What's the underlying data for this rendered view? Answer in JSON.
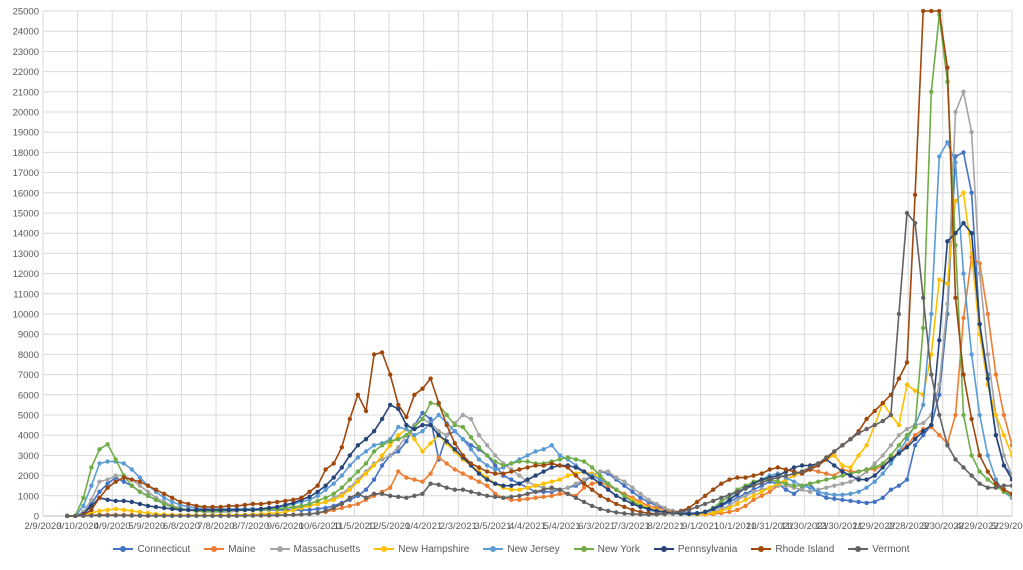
{
  "chart_data": {
    "type": "line",
    "title": "",
    "xlabel": "",
    "ylabel": "",
    "x_ticks": [
      "2/9/2020",
      "3/10/2020",
      "4/9/2020",
      "5/9/2020",
      "6/8/2020",
      "7/8/2020",
      "8/7/2020",
      "9/6/2020",
      "10/6/2020",
      "11/5/2020",
      "12/5/2020",
      "1/4/2021",
      "2/3/2021",
      "3/5/2021",
      "4/4/2021",
      "5/4/2021",
      "6/3/2021",
      "7/3/2021",
      "8/2/2021",
      "9/1/2021",
      "10/1/2021",
      "10/31/2021",
      "11/30/2021",
      "12/30/2021",
      "1/29/2022",
      "2/28/2022",
      "3/30/2022",
      "4/29/2022",
      "5/29/2022"
    ],
    "y_ticks": [
      "0",
      "1000",
      "2000",
      "3000",
      "4000",
      "5000",
      "6000",
      "7000",
      "8000",
      "9000",
      "10000",
      "11000",
      "12000",
      "13000",
      "14000",
      "15000",
      "16000",
      "17000",
      "18000",
      "19000",
      "20000",
      "21000",
      "22000",
      "23000",
      "24000",
      "25000"
    ],
    "ylim": [
      0,
      25000
    ],
    "grid": true,
    "legend_position": "bottom",
    "x_start": "2020-03-01",
    "x_step_days": 7,
    "series": [
      {
        "name": "Connecticut",
        "color": "#4472C4",
        "values": [
          0,
          0,
          200,
          600,
          1200,
          1600,
          1900,
          1700,
          1500,
          1200,
          1000,
          800,
          600,
          450,
          350,
          300,
          250,
          250,
          250,
          250,
          300,
          300,
          300,
          300,
          300,
          300,
          300,
          300,
          300,
          300,
          300,
          350,
          400,
          500,
          650,
          800,
          1000,
          1300,
          1800,
          2500,
          3000,
          3200,
          3700,
          4500,
          5100,
          4800,
          2800,
          4000,
          4200,
          3800,
          3500,
          3300,
          3000,
          2500,
          2000,
          1800,
          1600,
          1400,
          1200,
          1200,
          1200,
          1300,
          1400,
          1500,
          1700,
          2000,
          2200,
          2100,
          1800,
          1500,
          1200,
          900,
          700,
          500,
          350,
          250,
          200,
          150,
          150,
          200,
          300,
          500,
          700,
          900,
          1100,
          1300,
          1500,
          1700,
          1600,
          1300,
          1100,
          1400,
          1600,
          1100,
          900,
          850,
          800,
          750,
          700,
          650,
          700,
          900,
          1300,
          1500,
          1800,
          3500,
          4000,
          4500,
          6000,
          10000,
          17800,
          18000,
          16000,
          9500,
          7000,
          4000,
          2500,
          2000,
          1500,
          1000,
          700,
          600,
          550,
          600,
          700,
          800,
          900
        ],
        "__note": "values"
      },
      {
        "name": "Maine",
        "color": "#ED7D31",
        "values": [
          0,
          0,
          20,
          40,
          60,
          60,
          60,
          50,
          40,
          30,
          20,
          20,
          20,
          20,
          20,
          20,
          20,
          20,
          20,
          20,
          20,
          20,
          20,
          20,
          30,
          30,
          40,
          50,
          60,
          80,
          100,
          150,
          200,
          300,
          400,
          500,
          600,
          800,
          1000,
          1200,
          1400,
          2200,
          1900,
          1800,
          1700,
          2100,
          2900,
          2600,
          2300,
          2100,
          1900,
          1700,
          1500,
          1100,
          900,
          800,
          800,
          850,
          900,
          950,
          1000,
          1100,
          1100,
          1000,
          1400,
          1600,
          1700,
          1500,
          1300,
          1100,
          900,
          700,
          500,
          400,
          300,
          200,
          150,
          100,
          80,
          80,
          100,
          150,
          200,
          300,
          500,
          800,
          1000,
          1200,
          1500,
          1800,
          2000,
          2200,
          2300,
          2200,
          2100,
          2000,
          2300,
          2200,
          2200,
          2300,
          2300,
          2500,
          2800,
          3200,
          3500,
          4000,
          4300,
          4400,
          4000,
          3600,
          5000,
          9800,
          12800,
          12500,
          10000,
          7000,
          5000,
          3500,
          2500,
          1800,
          2600,
          1200,
          1000,
          900,
          900,
          1000,
          1100
        ],
        "__note": "values"
      },
      {
        "name": "Massachusetts",
        "color": "#A5A5A5",
        "values": [
          0,
          0,
          200,
          800,
          1700,
          1800,
          2000,
          2000,
          1800,
          1500,
          1200,
          900,
          700,
          500,
          400,
          300,
          250,
          200,
          200,
          200,
          200,
          250,
          300,
          300,
          300,
          300,
          350,
          400,
          400,
          450,
          500,
          600,
          700,
          900,
          1100,
          1400,
          1800,
          2200,
          2600,
          2800,
          3000,
          3400,
          4000,
          4500,
          4800,
          4600,
          4200,
          4000,
          4600,
          5000,
          4800,
          4000,
          3500,
          3000,
          2600,
          2300,
          2000,
          1700,
          1500,
          1400,
          1300,
          1300,
          1400,
          1600,
          1800,
          2000,
          2200,
          2200,
          1900,
          1700,
          1400,
          1100,
          800,
          600,
          400,
          250,
          150,
          100,
          100,
          150,
          200,
          350,
          500,
          800,
          1000,
          1200,
          1300,
          1400,
          1500,
          1500,
          1400,
          1300,
          1200,
          1300,
          1400,
          1500,
          1600,
          1700,
          1900,
          2200,
          2600,
          3000,
          3500,
          4000,
          4300,
          4500,
          4600,
          5000,
          6500,
          10500,
          20000,
          21000,
          19000,
          12000,
          8000,
          5000,
          3000,
          2000,
          1500,
          1100,
          900,
          800,
          800,
          900,
          1000,
          1100
        ],
        "__note": "values"
      },
      {
        "name": "New Hampshire",
        "color": "#FFC000",
        "values": [
          0,
          0,
          50,
          150,
          250,
          300,
          350,
          300,
          250,
          200,
          150,
          100,
          80,
          60,
          50,
          40,
          40,
          40,
          40,
          50,
          50,
          50,
          60,
          80,
          100,
          120,
          150,
          200,
          300,
          400,
          500,
          600,
          700,
          800,
          1000,
          1300,
          1700,
          2100,
          2500,
          3000,
          3500,
          4000,
          4300,
          3800,
          3200,
          3600,
          4000,
          3600,
          3200,
          2800,
          2500,
          2200,
          1900,
          1600,
          1400,
          1300,
          1300,
          1400,
          1500,
          1600,
          1700,
          1800,
          2000,
          2100,
          2200,
          2100,
          1900,
          1600,
          1300,
          1000,
          800,
          600,
          400,
          300,
          200,
          150,
          100,
          80,
          80,
          100,
          150,
          250,
          400,
          600,
          800,
          1000,
          1200,
          1400,
          1600,
          1800,
          2000,
          2200,
          2400,
          2600,
          2800,
          3000,
          2500,
          2400,
          3000,
          3500,
          4500,
          5600,
          5000,
          4500,
          6500,
          6200,
          6000,
          8000,
          11700,
          11500,
          15600,
          16000,
          13000,
          9000,
          6500,
          5000,
          4000,
          3000,
          2000,
          1200,
          900,
          800,
          700,
          700,
          800,
          900
        ],
        "__note": "values"
      },
      {
        "name": "New Jersey",
        "color": "#5B9BD5",
        "values": [
          0,
          0,
          500,
          1500,
          2600,
          2700,
          2700,
          2600,
          2300,
          1900,
          1500,
          1200,
          900,
          700,
          550,
          450,
          400,
          350,
          350,
          350,
          350,
          350,
          350,
          350,
          350,
          400,
          450,
          500,
          600,
          700,
          800,
          1000,
          1300,
          1600,
          2000,
          2500,
          2900,
          3200,
          3500,
          3600,
          3800,
          4400,
          4300,
          4000,
          4200,
          4600,
          5000,
          4600,
          4200,
          3800,
          3300,
          2800,
          2500,
          2300,
          2400,
          2600,
          2800,
          3000,
          3200,
          3300,
          3500,
          3000,
          2800,
          2500,
          2200,
          2000,
          1800,
          1600,
          1300,
          1000,
          700,
          500,
          300,
          200,
          150,
          120,
          100,
          100,
          120,
          200,
          400,
          700,
          1000,
          1200,
          1400,
          1600,
          1800,
          2000,
          2100,
          1900,
          1700,
          1500,
          1400,
          1200,
          1100,
          1050,
          1050,
          1100,
          1200,
          1400,
          1700,
          2100,
          2600,
          3200,
          3800,
          4500,
          5500,
          10000,
          17800,
          18500,
          17500,
          12000,
          8000,
          5000,
          3000,
          1800,
          1200,
          900,
          700,
          600,
          600,
          700,
          800
        ],
        "__note": "values"
      },
      {
        "name": "New York",
        "color": "#70AD47",
        "values": [
          0,
          0,
          900,
          2400,
          3300,
          3550,
          2800,
          2000,
          1500,
          1200,
          1000,
          800,
          600,
          450,
          350,
          300,
          250,
          250,
          250,
          250,
          300,
          300,
          300,
          300,
          300,
          350,
          350,
          400,
          450,
          500,
          600,
          750,
          900,
          1100,
          1400,
          1800,
          2200,
          2600,
          3200,
          3500,
          3700,
          3800,
          4000,
          4400,
          4800,
          5600,
          5500,
          5000,
          4500,
          4400,
          3900,
          3400,
          3000,
          2700,
          2500,
          2600,
          2700,
          2700,
          2600,
          2600,
          2700,
          2800,
          2900,
          2800,
          2700,
          2400,
          2000,
          1600,
          1300,
          1000,
          700,
          500,
          350,
          250,
          200,
          150,
          100,
          100,
          120,
          200,
          400,
          700,
          1000,
          1300,
          1500,
          1700,
          1800,
          1800,
          1700,
          1600,
          1500,
          1500,
          1600,
          1700,
          1800,
          1900,
          2000,
          2100,
          2200,
          2300,
          2400,
          2600,
          3000,
          3500,
          4000,
          4400,
          9300,
          21000,
          24800,
          21500,
          13400,
          5000,
          3000,
          2200,
          1800,
          1500,
          1200,
          1000,
          900,
          900,
          1000,
          1100,
          1200,
          1300
        ],
        "__note": "values"
      },
      {
        "name": "Pennsylvania",
        "color": "#264478",
        "values": [
          0,
          0,
          100,
          500,
          900,
          800,
          750,
          750,
          700,
          600,
          500,
          450,
          400,
          350,
          300,
          300,
          300,
          300,
          300,
          300,
          300,
          300,
          300,
          300,
          350,
          400,
          450,
          550,
          650,
          800,
          950,
          1200,
          1500,
          1900,
          2400,
          3000,
          3500,
          3800,
          4200,
          4800,
          5500,
          5300,
          4500,
          4300,
          4500,
          4500,
          4000,
          3700,
          3300,
          2900,
          2500,
          2100,
          1800,
          1600,
          1500,
          1500,
          1600,
          1800,
          2000,
          2200,
          2400,
          2500,
          2500,
          2400,
          2200,
          1900,
          1600,
          1300,
          1000,
          800,
          600,
          450,
          350,
          250,
          200,
          150,
          120,
          100,
          120,
          200,
          350,
          550,
          800,
          1100,
          1400,
          1600,
          1800,
          1900,
          2000,
          2200,
          2400,
          2500,
          2500,
          2600,
          2800,
          2500,
          2200,
          2000,
          1800,
          1800,
          2000,
          2400,
          2800,
          3100,
          3400,
          3800,
          4200,
          4500,
          8700,
          13600,
          14000,
          14500,
          14000,
          9500,
          6800,
          4000,
          2500,
          1800,
          1300,
          1000,
          700,
          500,
          400,
          350,
          350,
          500
        ],
        "__note": "values"
      },
      {
        "name": "Rhode Island",
        "color": "#9E480E",
        "values": [
          0,
          0,
          50,
          300,
          900,
          1400,
          1700,
          1900,
          1800,
          1700,
          1500,
          1300,
          1100,
          900,
          700,
          600,
          500,
          450,
          450,
          450,
          500,
          500,
          550,
          600,
          600,
          650,
          700,
          750,
          800,
          900,
          1200,
          1500,
          2300,
          2600,
          3400,
          4800,
          6000,
          5200,
          8000,
          8100,
          7000,
          5500,
          4900,
          6000,
          6300,
          6800,
          5600,
          4500,
          3600,
          3000,
          2600,
          2400,
          2200,
          2100,
          2100,
          2200,
          2300,
          2400,
          2500,
          2500,
          2600,
          2500,
          2400,
          2000,
          1600,
          1300,
          1000,
          800,
          600,
          450,
          300,
          200,
          150,
          100,
          100,
          150,
          250,
          400,
          700,
          1000,
          1300,
          1600,
          1800,
          1900,
          1900,
          2000,
          2100,
          2300,
          2400,
          2300,
          2200,
          2100,
          2300,
          2500,
          2800,
          3200,
          3500,
          3800,
          4200,
          4800,
          5200,
          5600,
          6000,
          6800,
          7600,
          15900,
          25000,
          27000,
          30000,
          22200,
          10800,
          7000,
          4800,
          3000,
          2200,
          1600,
          1300,
          1100,
          1100,
          1200,
          1300,
          1400
        ],
        "__note": "values"
      },
      {
        "name": "Vermont",
        "color": "#636363",
        "values": [
          0,
          0,
          10,
          20,
          30,
          30,
          30,
          25,
          20,
          15,
          10,
          10,
          10,
          10,
          10,
          10,
          10,
          10,
          10,
          10,
          10,
          10,
          15,
          20,
          25,
          30,
          40,
          50,
          60,
          80,
          100,
          150,
          250,
          400,
          600,
          900,
          1100,
          900,
          1100,
          1100,
          1000,
          950,
          900,
          1000,
          1100,
          1600,
          1550,
          1400,
          1300,
          1300,
          1200,
          1100,
          1000,
          950,
          900,
          950,
          1000,
          1100,
          1200,
          1300,
          1400,
          1300,
          1100,
          900,
          700,
          500,
          350,
          250,
          180,
          130,
          100,
          80,
          70,
          80,
          100,
          150,
          200,
          300,
          450,
          600,
          750,
          900,
          1050,
          1200,
          1350,
          1500,
          1650,
          1800,
          1900,
          2000,
          2100,
          2200,
          2400,
          2600,
          2900,
          3200,
          3500,
          3800,
          4100,
          4300,
          4500,
          4700,
          5000,
          10000,
          15000,
          14500,
          10800,
          7000,
          5000,
          3500,
          2800,
          2400,
          2000,
          1600,
          1400,
          1400,
          1500,
          1500,
          1600,
          1700
        ],
        "__note": "values"
      }
    ]
  }
}
